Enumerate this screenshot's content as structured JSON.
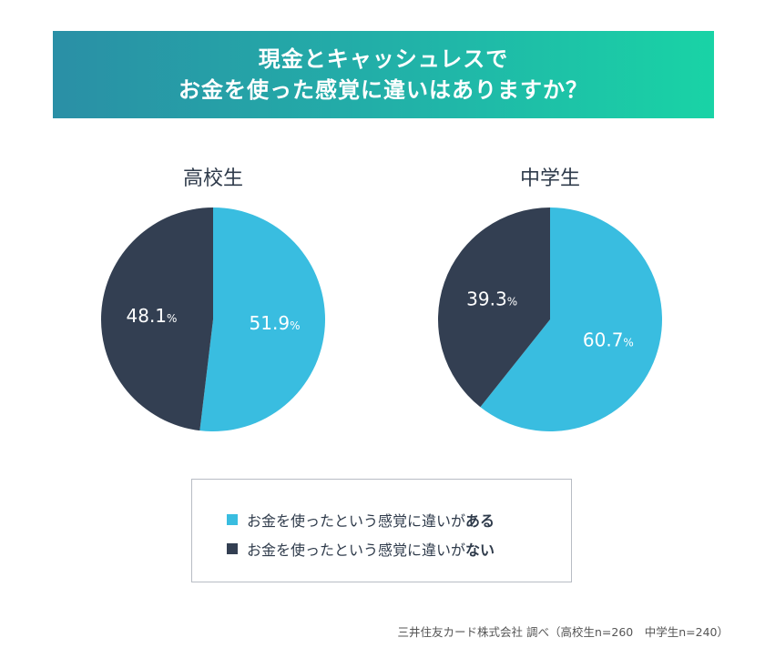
{
  "header": {
    "title_line1": "現金とキャッシュレスで",
    "title_line2": "お金を使った感覚に違いはありますか？"
  },
  "colors": {
    "yes": "#39bde0",
    "no": "#333f52",
    "label": "#ffffff"
  },
  "chart_data": [
    {
      "type": "pie",
      "title": "高校生",
      "categories": [
        "お金を使ったという感覚に違いがある",
        "お金を使ったという感覚に違いがない"
      ],
      "values": [
        51.9,
        48.1
      ],
      "labels": [
        "51.9",
        "48.1"
      ],
      "unit": "%"
    },
    {
      "type": "pie",
      "title": "中学生",
      "categories": [
        "お金を使ったという感覚に違いがある",
        "お金を使ったという感覚に違いがない"
      ],
      "values": [
        60.7,
        39.3
      ],
      "labels": [
        "60.7",
        "39.3"
      ],
      "unit": "%"
    }
  ],
  "legend": {
    "items": [
      {
        "prefix": "お金を使ったという感覚に違いが",
        "emph": "ある"
      },
      {
        "prefix": "お金を使ったという感覚に違いが",
        "emph": "ない"
      }
    ]
  },
  "source": "三井住友カード株式会社 調べ（高校生n=260　中学生n=240）"
}
